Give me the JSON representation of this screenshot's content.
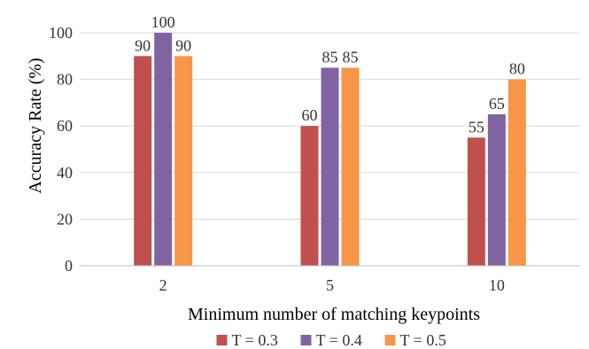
{
  "chart_data": {
    "type": "bar",
    "title": "",
    "xlabel": "Minimum number of matching keypoints",
    "ylabel": "Accuracy Rate (%)",
    "categories": [
      "2",
      "5",
      "10"
    ],
    "ylim": [
      0,
      100
    ],
    "yticks": [
      0,
      20,
      40,
      60,
      80,
      100
    ],
    "grid": "horizontal",
    "legend_position": "bottom",
    "series": [
      {
        "name": "T = 0.3",
        "color": "#c0504d",
        "values": [
          90,
          60,
          55
        ]
      },
      {
        "name": "T = 0.4",
        "color": "#8064a2",
        "values": [
          100,
          85,
          65
        ]
      },
      {
        "name": "T = 0.5",
        "color": "#f79646",
        "values": [
          90,
          85,
          80
        ]
      }
    ]
  }
}
